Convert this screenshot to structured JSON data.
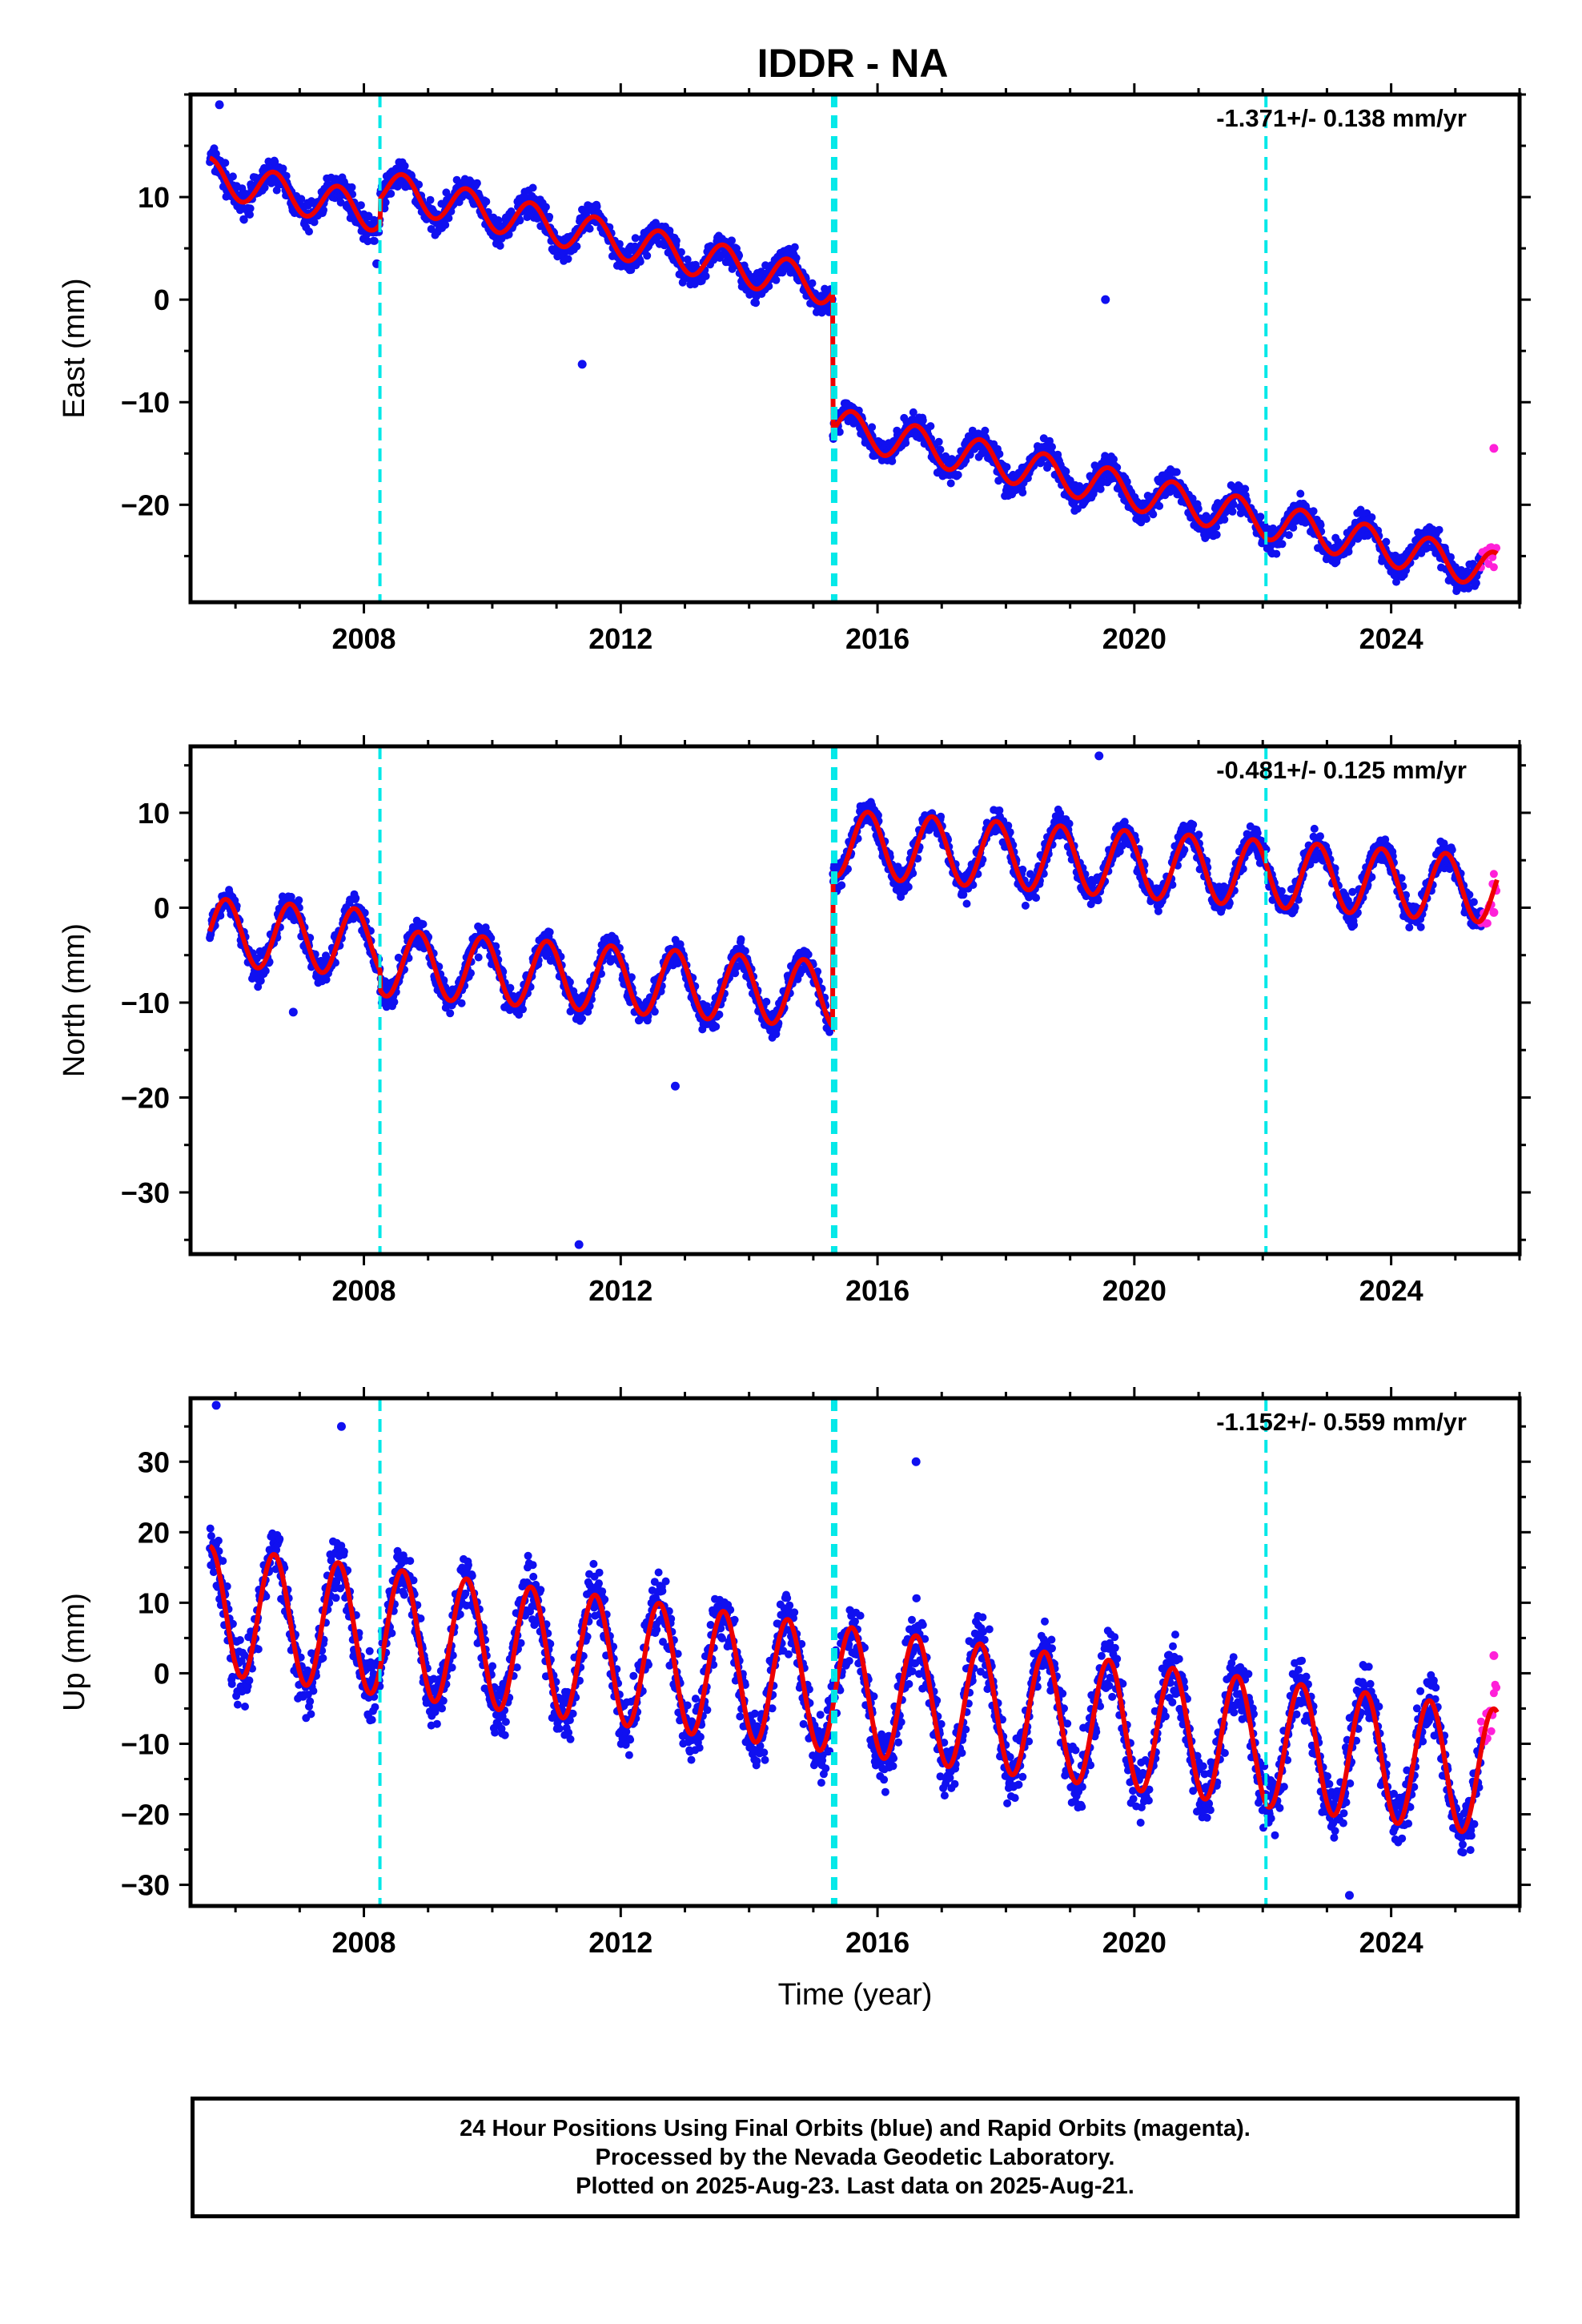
{
  "title": "IDDR - NA",
  "x_axis": {
    "label": "Time (year)",
    "range": [
      2005.3,
      2026.0
    ],
    "ticks": [
      2008,
      2012,
      2016,
      2020,
      2024
    ],
    "tick_labels": [
      "2008",
      "2012",
      "2016",
      "2020",
      "2024"
    ]
  },
  "event_lines": [
    2008.25,
    2015.3,
    2015.35,
    2022.05
  ],
  "colors": {
    "final_orbits": "#1010f0",
    "rapid_orbits": "#ff20d8",
    "model_fit": "#ee0000",
    "event_lines": "#00e8e8"
  },
  "footer": {
    "line1": "24 Hour Positions Using Final Orbits (blue) and Rapid Orbits (magenta).",
    "line2": "Processed by the Nevada Geodetic Laboratory.",
    "line3": "Plotted on 2025-Aug-23. Last data on 2025-Aug-21."
  },
  "chart_data": [
    {
      "type": "scatter",
      "panel": "east",
      "ylabel": "East (mm)",
      "ylim": [
        -29.5,
        20
      ],
      "yticks": [
        -20,
        -10,
        0,
        10
      ],
      "ytick_labels": [
        "−20",
        "−10",
        "0",
        "10"
      ],
      "rate_label": "-1.371+/- 0.138 mm/yr",
      "model": {
        "t0": 2005.6,
        "offset": 12.0,
        "rate": -1.371,
        "seasonal_amplitude": 1.8,
        "seasonal_phase_year": 2005.6,
        "steps": [
          {
            "year": 2008.25,
            "size": 2.5
          },
          {
            "year": 2015.3,
            "size": -13.5
          }
        ]
      },
      "scatter_half_width": 2.0,
      "series": [
        {
          "name": "Final Orbits (blue)",
          "year_range": [
            2005.6,
            2025.4
          ]
        },
        {
          "name": "Rapid Orbits (magenta)",
          "year_range": [
            2025.4,
            2025.65
          ]
        }
      ],
      "outliers": [
        {
          "x": 2005.75,
          "y": 19.0
        },
        {
          "x": 2011.4,
          "y": -6.3
        },
        {
          "x": 2019.55,
          "y": 0.0
        },
        {
          "x": 2008.2,
          "y": 3.5
        },
        {
          "x": 2025.6,
          "y": -14.5
        }
      ]
    },
    {
      "type": "scatter",
      "panel": "north",
      "ylabel": "North (mm)",
      "ylim": [
        -36.5,
        17
      ],
      "yticks": [
        -30,
        -20,
        -10,
        0,
        10
      ],
      "ytick_labels": [
        "−30",
        "−20",
        "−10",
        "0",
        "10"
      ],
      "rate_label": "-0.481+/- 0.125 mm/yr",
      "model": {
        "t0": 2005.6,
        "offset": -2.5,
        "rate": -0.481,
        "seasonal_amplitude": 3.5,
        "seasonal_phase_year": 2005.85,
        "steps": [
          {
            "year": 2008.25,
            "size": -2.0
          },
          {
            "year": 2015.3,
            "size": 16.0
          }
        ]
      },
      "scatter_half_width": 2.2,
      "series": [
        {
          "name": "Final Orbits (blue)",
          "year_range": [
            2005.6,
            2025.4
          ]
        },
        {
          "name": "Rapid Orbits (magenta)",
          "year_range": [
            2025.4,
            2025.65
          ]
        }
      ],
      "outliers": [
        {
          "x": 2011.35,
          "y": -35.5
        },
        {
          "x": 2019.45,
          "y": 16.0
        },
        {
          "x": 2012.85,
          "y": -18.8
        },
        {
          "x": 2006.9,
          "y": -11.0
        },
        {
          "x": 2025.6,
          "y": -0.5
        }
      ]
    },
    {
      "type": "scatter",
      "panel": "up",
      "ylabel": "Up (mm)",
      "ylim": [
        -33,
        39
      ],
      "yticks": [
        -30,
        -20,
        -10,
        0,
        10,
        20,
        30
      ],
      "ytick_labels": [
        "−30",
        "−20",
        "−10",
        "0",
        "10",
        "20",
        "30"
      ],
      "rate_label": "-1.152+/- 0.559 mm/yr",
      "model": {
        "t0": 2005.6,
        "offset": 9.0,
        "rate": -1.152,
        "seasonal_amplitude": 9.0,
        "seasonal_phase_year": 2005.6,
        "steps": []
      },
      "scatter_half_width": 6.5,
      "series": [
        {
          "name": "Final Orbits (blue)",
          "year_range": [
            2005.6,
            2025.4
          ]
        },
        {
          "name": "Rapid Orbits (magenta)",
          "year_range": [
            2025.4,
            2025.65
          ]
        }
      ],
      "outliers": [
        {
          "x": 2005.7,
          "y": 38.0
        },
        {
          "x": 2016.6,
          "y": 30.0
        },
        {
          "x": 2023.35,
          "y": -31.5
        },
        {
          "x": 2007.65,
          "y": 35.0
        },
        {
          "x": 2025.6,
          "y": 2.5
        }
      ]
    }
  ]
}
